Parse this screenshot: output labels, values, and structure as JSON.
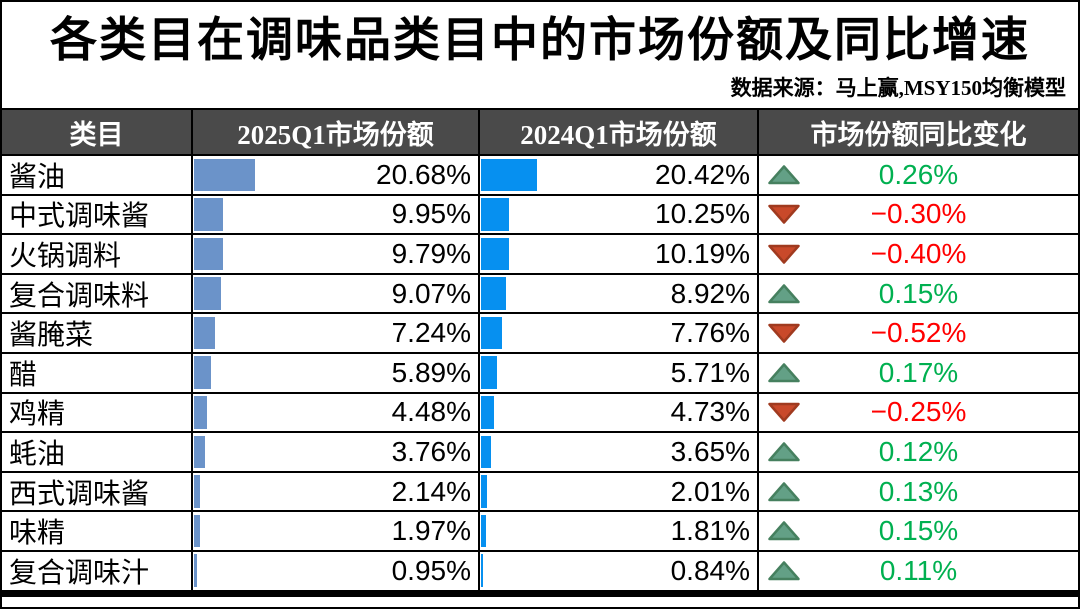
{
  "header": {
    "title": "各类目在调味品类目中的市场份额及同比增速",
    "source": "数据来源：马上赢,MSY150均衡模型"
  },
  "table": {
    "headers": [
      "类目",
      "2025Q1市场份额",
      "2024Q1市场份额",
      "市场份额同比变化"
    ],
    "rows": [
      {
        "category": "酱油",
        "share_2025": 20.68,
        "share_2025_label": "20.68%",
        "share_2024": 20.42,
        "share_2024_label": "20.42%",
        "change": 0.26,
        "change_label": "0.26%",
        "direction": "up"
      },
      {
        "category": "中式调味酱",
        "share_2025": 9.95,
        "share_2025_label": "9.95%",
        "share_2024": 10.25,
        "share_2024_label": "10.25%",
        "change": -0.3,
        "change_label": "−0.30%",
        "direction": "down"
      },
      {
        "category": "火锅调料",
        "share_2025": 9.79,
        "share_2025_label": "9.79%",
        "share_2024": 10.19,
        "share_2024_label": "10.19%",
        "change": -0.4,
        "change_label": "−0.40%",
        "direction": "down"
      },
      {
        "category": "复合调味料",
        "share_2025": 9.07,
        "share_2025_label": "9.07%",
        "share_2024": 8.92,
        "share_2024_label": "8.92%",
        "change": 0.15,
        "change_label": "0.15%",
        "direction": "up"
      },
      {
        "category": "酱腌菜",
        "share_2025": 7.24,
        "share_2025_label": "7.24%",
        "share_2024": 7.76,
        "share_2024_label": "7.76%",
        "change": -0.52,
        "change_label": "−0.52%",
        "direction": "down"
      },
      {
        "category": "醋",
        "share_2025": 5.89,
        "share_2025_label": "5.89%",
        "share_2024": 5.71,
        "share_2024_label": "5.71%",
        "change": 0.17,
        "change_label": "0.17%",
        "direction": "up"
      },
      {
        "category": "鸡精",
        "share_2025": 4.48,
        "share_2025_label": "4.48%",
        "share_2024": 4.73,
        "share_2024_label": "4.73%",
        "change": -0.25,
        "change_label": "−0.25%",
        "direction": "down"
      },
      {
        "category": "蚝油",
        "share_2025": 3.76,
        "share_2025_label": "3.76%",
        "share_2024": 3.65,
        "share_2024_label": "3.65%",
        "change": 0.12,
        "change_label": "0.12%",
        "direction": "up"
      },
      {
        "category": "西式调味酱",
        "share_2025": 2.14,
        "share_2025_label": "2.14%",
        "share_2024": 2.01,
        "share_2024_label": "2.01%",
        "change": 0.13,
        "change_label": "0.13%",
        "direction": "up"
      },
      {
        "category": "味精",
        "share_2025": 1.97,
        "share_2025_label": "1.97%",
        "share_2024": 1.81,
        "share_2024_label": "1.81%",
        "change": 0.15,
        "change_label": "0.15%",
        "direction": "up"
      },
      {
        "category": "复合调味汁",
        "share_2025": 0.95,
        "share_2025_label": "0.95%",
        "share_2024": 0.84,
        "share_2024_label": "0.84%",
        "change": 0.11,
        "change_label": "0.11%",
        "direction": "up"
      }
    ]
  },
  "colors": {
    "header_bg": "#4A4A4A",
    "header_text": "#FFFFFF",
    "bar_2025": "#6B93C9",
    "bar_2024": "#0690F0",
    "up_triangle_fill": "#63A086",
    "up_triangle_border": "#46805F",
    "down_triangle_fill": "#C9492A",
    "down_triangle_border": "#A03A1F",
    "positive_text": "#00B050",
    "negative_text": "#FF0000",
    "grid_line": "#000000"
  },
  "chart_data": {
    "type": "table",
    "title": "各类目在调味品类目中的市场份额及同比增速",
    "source_note": "数据来源：马上赢,MSY150均衡模型",
    "columns": [
      "类目",
      "2025Q1市场份额",
      "2024Q1市场份额",
      "市场份额同比变化"
    ],
    "categories": [
      "酱油",
      "中式调味酱",
      "火锅调料",
      "复合调味料",
      "酱腌菜",
      "醋",
      "鸡精",
      "蚝油",
      "西式调味酱",
      "味精",
      "复合调味汁"
    ],
    "series": [
      {
        "name": "2025Q1市场份额",
        "unit": "%",
        "values": [
          20.68,
          9.95,
          9.79,
          9.07,
          7.24,
          5.89,
          4.48,
          3.76,
          2.14,
          1.97,
          0.95
        ]
      },
      {
        "name": "2024Q1市场份额",
        "unit": "%",
        "values": [
          20.42,
          10.25,
          10.19,
          8.92,
          7.76,
          5.71,
          4.73,
          3.65,
          2.01,
          1.81,
          0.84
        ]
      },
      {
        "name": "市场份额同比变化",
        "unit": "pp",
        "values": [
          0.26,
          -0.3,
          -0.4,
          0.15,
          -0.52,
          0.17,
          -0.25,
          0.12,
          0.13,
          0.15,
          0.11
        ]
      }
    ],
    "layout_hints": {
      "inline_bars": true,
      "bar_columns": [
        "2025Q1市场份额",
        "2024Q1市场份额"
      ],
      "direction_icons": "up=green triangle, down=red triangle",
      "positive_color": "#00B050",
      "negative_color": "#FF0000"
    }
  }
}
